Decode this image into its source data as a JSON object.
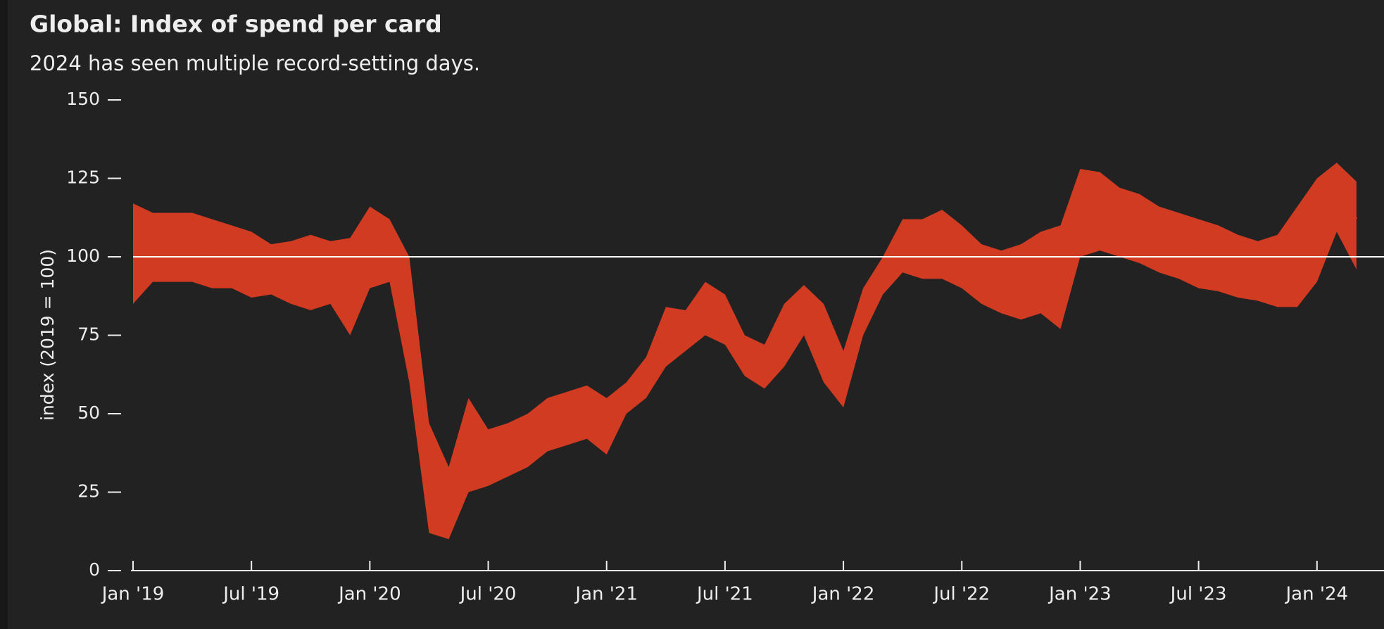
{
  "chart_data": {
    "type": "line",
    "title": "Global: Index of spend per card",
    "subtitle": "2024 has seen multiple record-setting days.",
    "y_label": "index (2019 = 100)",
    "color": "#d13b21",
    "reference_line": 100,
    "x": [
      "2019-01",
      "2019-02",
      "2019-03",
      "2019-04",
      "2019-05",
      "2019-06",
      "2019-07",
      "2019-08",
      "2019-09",
      "2019-10",
      "2019-11",
      "2019-12",
      "2020-01",
      "2020-02",
      "2020-03",
      "2020-04",
      "2020-05",
      "2020-06",
      "2020-07",
      "2020-08",
      "2020-09",
      "2020-10",
      "2020-11",
      "2020-12",
      "2021-01",
      "2021-02",
      "2021-03",
      "2021-04",
      "2021-05",
      "2021-06",
      "2021-07",
      "2021-08",
      "2021-09",
      "2021-10",
      "2021-11",
      "2021-12",
      "2022-01",
      "2022-02",
      "2022-03",
      "2022-04",
      "2022-05",
      "2022-06",
      "2022-07",
      "2022-08",
      "2022-09",
      "2022-10",
      "2022-11",
      "2022-12",
      "2023-01",
      "2023-02",
      "2023-03",
      "2023-04",
      "2023-05",
      "2023-06",
      "2023-07",
      "2023-08",
      "2023-09",
      "2023-10",
      "2023-11",
      "2023-12",
      "2024-01",
      "2024-02",
      "2024-03"
    ],
    "values": [
      103,
      103,
      103,
      103,
      101,
      100,
      98,
      96,
      95,
      95,
      95,
      95,
      103,
      100,
      85,
      25,
      20,
      40,
      35,
      38,
      42,
      46,
      48,
      51,
      48,
      55,
      62,
      75,
      77,
      83,
      80,
      70,
      65,
      76,
      83,
      72,
      60,
      83,
      94,
      103,
      102,
      103,
      100,
      95,
      92,
      92,
      94,
      92,
      115,
      114,
      111,
      108,
      105,
      103,
      100,
      99,
      97,
      95,
      96,
      98,
      108,
      118,
      112
    ],
    "low": [
      85,
      92,
      92,
      92,
      90,
      90,
      87,
      88,
      85,
      83,
      85,
      75,
      90,
      92,
      60,
      12,
      10,
      25,
      27,
      30,
      33,
      38,
      40,
      42,
      37,
      50,
      55,
      65,
      70,
      75,
      72,
      62,
      58,
      65,
      75,
      60,
      52,
      75,
      88,
      95,
      93,
      93,
      90,
      85,
      82,
      80,
      82,
      77,
      100,
      102,
      100,
      98,
      95,
      93,
      90,
      89,
      87,
      86,
      84,
      84,
      92,
      108,
      96
    ],
    "high": [
      117,
      114,
      114,
      114,
      112,
      110,
      108,
      104,
      105,
      107,
      105,
      106,
      116,
      112,
      100,
      47,
      33,
      55,
      45,
      47,
      50,
      55,
      57,
      59,
      55,
      60,
      68,
      84,
      83,
      92,
      88,
      75,
      72,
      85,
      91,
      85,
      70,
      90,
      100,
      112,
      112,
      115,
      110,
      104,
      102,
      104,
      108,
      110,
      128,
      127,
      122,
      120,
      116,
      114,
      112,
      110,
      107,
      105,
      107,
      116,
      125,
      130,
      124
    ],
    "xlim": [
      "2019-01",
      "2024-03"
    ],
    "xticks": [
      {
        "value": "2019-01",
        "label": "Jan '19"
      },
      {
        "value": "2019-07",
        "label": "Jul '19"
      },
      {
        "value": "2020-01",
        "label": "Jan '20"
      },
      {
        "value": "2020-07",
        "label": "Jul '20"
      },
      {
        "value": "2021-01",
        "label": "Jan '21"
      },
      {
        "value": "2021-07",
        "label": "Jul '21"
      },
      {
        "value": "2022-01",
        "label": "Jan '22"
      },
      {
        "value": "2022-07",
        "label": "Jul '22"
      },
      {
        "value": "2023-01",
        "label": "Jan '23"
      },
      {
        "value": "2023-07",
        "label": "Jul '23"
      },
      {
        "value": "2024-01",
        "label": "Jan '24"
      }
    ],
    "ylim": [
      0,
      150
    ],
    "yticks": [
      0,
      25,
      50,
      75,
      100,
      125,
      150
    ]
  }
}
